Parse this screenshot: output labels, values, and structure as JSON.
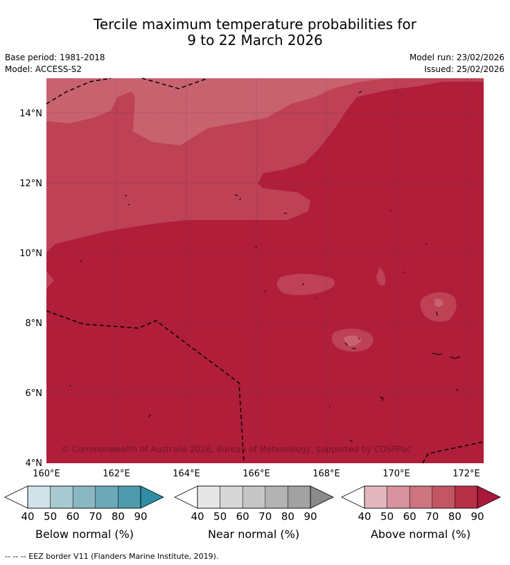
{
  "title": {
    "line1": "Tercile maximum temperature probabilities for",
    "line2": "9 to 22 March 2026"
  },
  "meta": {
    "base_period": "Base period: 1981-2018",
    "model": "Model: ACCESS-S2",
    "model_run": "Model run: 23/02/2026",
    "issued": "Issued: 25/02/2026"
  },
  "map": {
    "lat_labels": [
      "14°N",
      "12°N",
      "10°N",
      "8°N",
      "6°N",
      "4°N"
    ],
    "lon_labels": [
      "160°E",
      "162°E",
      "164°E",
      "166°E",
      "168°E",
      "170°E",
      "172°E"
    ],
    "copyright": "© Commonwealth of Australia 2026, Bureau of Meteorology, supported by COSPPac",
    "colors": {
      "p90": "#b01e3a",
      "p80": "#be4155",
      "p70": "#c9626f",
      "border": "#000000"
    }
  },
  "legends": {
    "ticks": [
      "40",
      "50",
      "60",
      "70",
      "80",
      "90"
    ],
    "below": {
      "label": "Below normal (%)",
      "colors": [
        "#cfe3e8",
        "#a8c9cf",
        "#8ab7c2",
        "#6ea9b8",
        "#4f9aac",
        "#2f8ea3"
      ]
    },
    "near": {
      "label": "Near normal (%)",
      "colors": [
        "#e6e6e6",
        "#d7d7d7",
        "#c6c6c6",
        "#b3b3b3",
        "#a2a2a2",
        "#8a8a8a"
      ]
    },
    "above": {
      "label": "Above normal (%)",
      "colors": [
        "#e3b6bd",
        "#d7939e",
        "#cd7580",
        "#c35663",
        "#b83048",
        "#a8193a"
      ]
    }
  },
  "footer": "--  --  -- EEZ border V11 (Flanders Marine Institute, 2019)."
}
